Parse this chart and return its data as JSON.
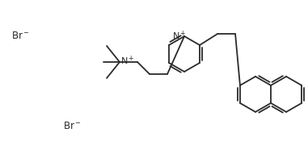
{
  "background_color": "#ffffff",
  "line_color": "#2a2a2a",
  "line_width": 1.3,
  "text_color": "#2a2a2a",
  "font_size": 8.5,
  "figsize": [
    3.81,
    1.85
  ],
  "dpi": 100
}
